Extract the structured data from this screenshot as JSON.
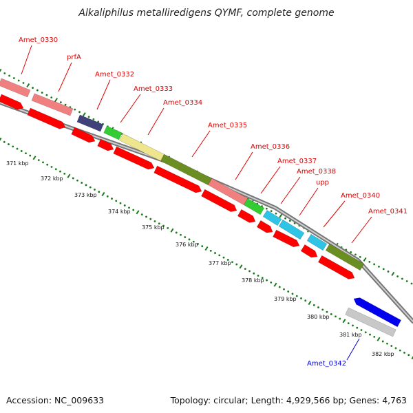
{
  "title": "Alkaliphilus metalliredigens QYMF, complete genome",
  "accession_text": "Accession: NC_009633",
  "topology_text": "Topology: circular; Length: 4,929,566 bp; Genes: 4,763",
  "colors": {
    "label_forward": "#dd0000",
    "label_reverse": "#0000cc",
    "leader_forward": "#dd0000",
    "leader_reverse": "#0000cc",
    "backbone": "#888888",
    "dots": "#1a7a1a",
    "cds_forward": "#ff0000",
    "cds_reverse": "#0000ee"
  },
  "kbp_ticks": [
    "371 kbp",
    "372 kbp",
    "373 kbp",
    "374 kbp",
    "375 kbp",
    "376 kbp",
    "377 kbp",
    "378 kbp",
    "379 kbp",
    "380 kbp",
    "381 kbp",
    "382 kbp"
  ],
  "gene_labels": [
    "Amet_0330",
    "prfA",
    "Amet_0332",
    "Amet_0333",
    "Amet_0334",
    "Amet_0335",
    "Amet_0336",
    "Amet_0337",
    "Amet_0338",
    "upp",
    "Amet_0340",
    "Amet_0341",
    "Amet_0342"
  ],
  "feature_colors": {
    "salmon": "#f08080",
    "purple": "#40407a",
    "green": "#33cc33",
    "khaki": "#eee68c",
    "olive": "#6b8e23",
    "cyan": "#2ec4e6",
    "lightgray": "#c8c8c8",
    "blue": "#0000ee"
  }
}
